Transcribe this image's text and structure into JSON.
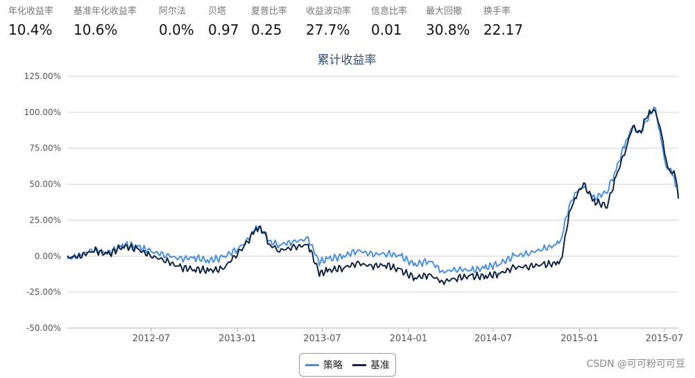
{
  "metrics": [
    {
      "label": "年化收益率",
      "value": "10.4%"
    },
    {
      "label": "基准年化收益率",
      "value": "10.6%"
    },
    {
      "label": "阿尔法",
      "value": "0.0%"
    },
    {
      "label": "贝塔",
      "value": "0.97"
    },
    {
      "label": "夏普比率",
      "value": "0.25"
    },
    {
      "label": "收益波动率",
      "value": "27.7%"
    },
    {
      "label": "信息比率",
      "value": "0.01"
    },
    {
      "label": "最大回撤",
      "value": "30.8%"
    },
    {
      "label": "换手率",
      "value": "22.17"
    }
  ],
  "chart_data": {
    "type": "line",
    "title": "累计收益率",
    "xlabel": "",
    "ylabel": "",
    "x_ticks": [
      "2012-07",
      "2013-01",
      "2013-07",
      "2014-01",
      "2014-07",
      "2015-01",
      "2015-07"
    ],
    "y_ticks": [
      "125.00%",
      "100.00%",
      "75.00%",
      "50.00%",
      "25.00%",
      "0.00%",
      "-25.00%",
      "-50.00%"
    ],
    "ylim": [
      -50,
      125
    ],
    "xlim": [
      "2012-01-04",
      "2015-07-31"
    ],
    "grid": true,
    "legend_position": "bottom-center",
    "series": [
      {
        "name": "策略",
        "color": "#4a8fdd",
        "points": [
          [
            "2012-01-04",
            -2
          ],
          [
            "2012-02-01",
            1
          ],
          [
            "2012-03-01",
            5
          ],
          [
            "2012-04-01",
            2
          ],
          [
            "2012-05-01",
            8
          ],
          [
            "2012-06-01",
            7
          ],
          [
            "2012-07-01",
            3
          ],
          [
            "2012-08-01",
            1
          ],
          [
            "2012-09-01",
            -2
          ],
          [
            "2012-10-01",
            -1
          ],
          [
            "2012-11-01",
            -3
          ],
          [
            "2012-12-01",
            -1
          ],
          [
            "2013-01-01",
            5
          ],
          [
            "2013-01-20",
            10
          ],
          [
            "2013-02-10",
            20
          ],
          [
            "2013-02-25",
            18
          ],
          [
            "2013-03-10",
            10
          ],
          [
            "2013-04-01",
            8
          ],
          [
            "2013-05-01",
            10
          ],
          [
            "2013-06-01",
            12
          ],
          [
            "2013-06-25",
            -4
          ],
          [
            "2013-07-15",
            -2
          ],
          [
            "2013-08-15",
            0
          ],
          [
            "2013-09-15",
            4
          ],
          [
            "2013-10-15",
            1
          ],
          [
            "2013-11-15",
            2
          ],
          [
            "2013-12-15",
            0
          ],
          [
            "2014-01-15",
            -6
          ],
          [
            "2014-02-15",
            -3
          ],
          [
            "2014-03-15",
            -11
          ],
          [
            "2014-04-15",
            -9
          ],
          [
            "2014-05-15",
            -10
          ],
          [
            "2014-06-15",
            -8
          ],
          [
            "2014-07-15",
            -5
          ],
          [
            "2014-08-15",
            0
          ],
          [
            "2014-09-15",
            2
          ],
          [
            "2014-10-15",
            5
          ],
          [
            "2014-11-15",
            8
          ],
          [
            "2014-11-25",
            15
          ],
          [
            "2014-12-10",
            35
          ],
          [
            "2014-12-25",
            45
          ],
          [
            "2015-01-10",
            48
          ],
          [
            "2015-02-01",
            40
          ],
          [
            "2015-03-01",
            45
          ],
          [
            "2015-03-20",
            60
          ],
          [
            "2015-04-10",
            80
          ],
          [
            "2015-04-25",
            90
          ],
          [
            "2015-05-10",
            85
          ],
          [
            "2015-05-25",
            95
          ],
          [
            "2015-06-05",
            101
          ],
          [
            "2015-06-12",
            102
          ],
          [
            "2015-06-25",
            80
          ],
          [
            "2015-07-05",
            60
          ],
          [
            "2015-07-15",
            62
          ],
          [
            "2015-07-25",
            50
          ],
          [
            "2015-07-31",
            42
          ]
        ]
      },
      {
        "name": "基准",
        "color": "#0f2340",
        "points": [
          [
            "2012-01-04",
            -1
          ],
          [
            "2012-02-01",
            0
          ],
          [
            "2012-03-01",
            4
          ],
          [
            "2012-04-01",
            1
          ],
          [
            "2012-05-01",
            7
          ],
          [
            "2012-06-01",
            5
          ],
          [
            "2012-07-01",
            0
          ],
          [
            "2012-08-01",
            -3
          ],
          [
            "2012-09-01",
            -8
          ],
          [
            "2012-10-01",
            -9
          ],
          [
            "2012-11-01",
            -10
          ],
          [
            "2012-12-01",
            -9
          ],
          [
            "2013-01-01",
            2
          ],
          [
            "2013-01-20",
            8
          ],
          [
            "2013-02-10",
            20
          ],
          [
            "2013-02-25",
            18
          ],
          [
            "2013-03-10",
            8
          ],
          [
            "2013-04-01",
            4
          ],
          [
            "2013-05-01",
            6
          ],
          [
            "2013-06-01",
            8
          ],
          [
            "2013-06-25",
            -12
          ],
          [
            "2013-07-15",
            -10
          ],
          [
            "2013-08-15",
            -8
          ],
          [
            "2013-09-15",
            -5
          ],
          [
            "2013-10-15",
            -7
          ],
          [
            "2013-11-15",
            -6
          ],
          [
            "2013-12-15",
            -10
          ],
          [
            "2014-01-15",
            -15
          ],
          [
            "2014-02-15",
            -13
          ],
          [
            "2014-03-15",
            -18
          ],
          [
            "2014-04-15",
            -15
          ],
          [
            "2014-05-15",
            -14
          ],
          [
            "2014-06-15",
            -14
          ],
          [
            "2014-07-15",
            -12
          ],
          [
            "2014-08-15",
            -8
          ],
          [
            "2014-09-15",
            -7
          ],
          [
            "2014-10-15",
            -6
          ],
          [
            "2014-11-15",
            -5
          ],
          [
            "2014-11-25",
            0
          ],
          [
            "2014-12-10",
            30
          ],
          [
            "2014-12-25",
            42
          ],
          [
            "2015-01-10",
            50
          ],
          [
            "2015-02-01",
            38
          ],
          [
            "2015-03-01",
            35
          ],
          [
            "2015-03-20",
            55
          ],
          [
            "2015-04-10",
            75
          ],
          [
            "2015-04-25",
            90
          ],
          [
            "2015-05-10",
            85
          ],
          [
            "2015-05-25",
            98
          ],
          [
            "2015-06-05",
            100
          ],
          [
            "2015-06-12",
            101
          ],
          [
            "2015-06-25",
            85
          ],
          [
            "2015-07-05",
            65
          ],
          [
            "2015-07-15",
            60
          ],
          [
            "2015-07-25",
            55
          ],
          [
            "2015-07-31",
            40
          ]
        ]
      }
    ]
  },
  "watermark": "CSDN @可可粉可可豆"
}
